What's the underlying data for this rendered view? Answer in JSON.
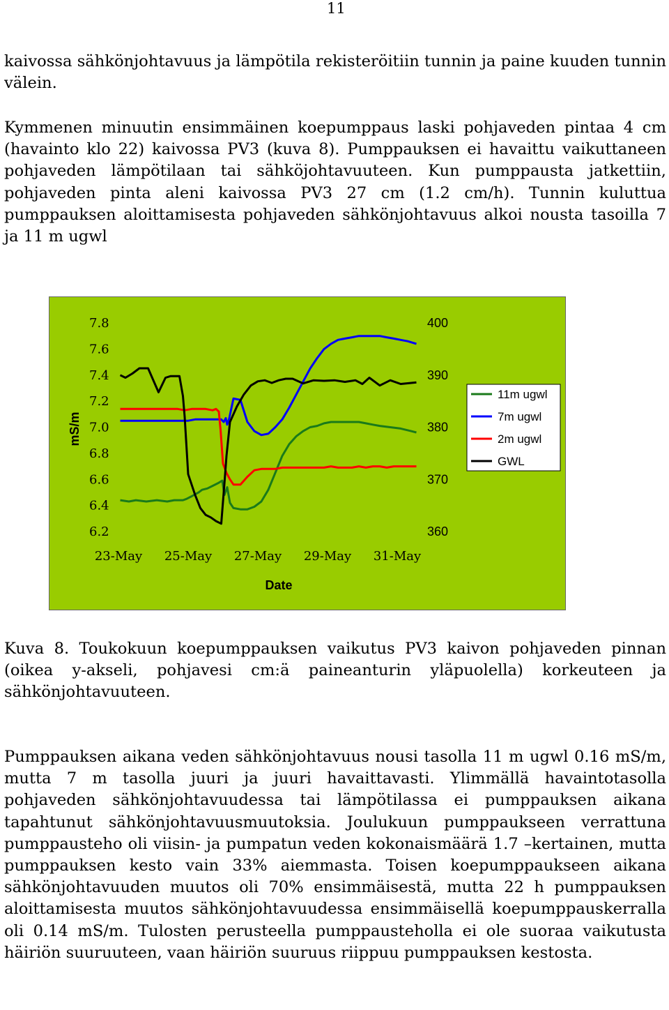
{
  "page_number": "11",
  "paragraphs": {
    "p1": "kaivossa sähkönjohtavuus ja lämpötila rekisteröitiin tunnin ja paine kuuden tunnin välein.",
    "p2": "Kymmenen minuutin ensimmäinen koepumppaus laski pohjaveden pintaa 4 cm (havainto klo 22) kaivossa PV3 (kuva 8). Pumppauksen ei havaittu vaikuttaneen pohjaveden lämpötilaan tai sähköjohtavuuteen. Kun pumppausta jatkettiin, pohjaveden pinta aleni kaivossa PV3 27 cm (1.2 cm/h). Tunnin kuluttua pumppauksen aloittamisesta pohjaveden sähkönjohtavuus alkoi nousta tasoilla 7 ja 11 m ugwl",
    "caption": "Kuva 8. Toukokuun koepumppauksen vaikutus PV3 kaivon pohjaveden pinnan (oikea y-akseli, pohjavesi cm:ä paineanturin yläpuolella) korkeuteen ja sähkönjohtavuuteen.",
    "p3": "Pumppauksen aikana veden sähkönjohtavuus nousi tasolla 11 m ugwl 0.16 mS/m, mutta 7 m tasolla juuri ja juuri havaittavasti. Ylimmällä havaintotasolla pohjaveden sähkönjohtavuudessa tai lämpötilassa ei pumppauksen aikana tapahtunut sähkönjohtavuusmuutoksia. Joulukuun pumppaukseen verrattuna pumppausteho oli viisin- ja pumpatun veden kokonaismäärä 1.7 –kertainen, mutta pumppauksen kesto vain 33% aiemmasta. Toisen koepumppaukseen aikana sähkönjohtavuuden muutos oli 70% ensimmäisestä, mutta 22 h pumppauksen aloittamisesta muutos sähkönjohtavuudessa ensimmäisellä koepumppauskerralla oli 0.14 mS/m. Tulosten perusteella pumppausteholla ei ole suoraa vaikutusta häiriön suuruuteen, vaan häiriön suuruus riippuu pumppauksen kestosta."
  },
  "colors": {
    "background": "#99cc00",
    "legend_bg": "#ffffff",
    "series_11m": "#1a7a1a",
    "series_7m": "#0000ff",
    "series_2m": "#ff0000",
    "series_gwl": "#000000"
  },
  "chart_data": {
    "type": "line",
    "xlabel": "Date",
    "ylabel": "mS/m",
    "x_ticks": [
      "23-May",
      "25-May",
      "27-May",
      "29-May",
      "31-May"
    ],
    "x_tick_values": [
      23,
      25,
      27,
      29,
      31
    ],
    "xlim": [
      23,
      31.6
    ],
    "y_ticks": [
      "7.8",
      "7.6",
      "7.4",
      "7.2",
      "7.0",
      "6.8",
      "6.6",
      "6.4",
      "6.2"
    ],
    "y_tick_values": [
      7.8,
      7.6,
      7.4,
      7.2,
      7.0,
      6.8,
      6.6,
      6.4,
      6.2
    ],
    "ylim": [
      6.2,
      7.8
    ],
    "y2_ticks": [
      "400",
      "390",
      "380",
      "370",
      "360"
    ],
    "y2_tick_values": [
      400,
      390,
      380,
      370,
      360
    ],
    "y2lim": [
      360,
      400
    ],
    "legend_position": "right",
    "series": [
      {
        "name": "11m ugwl",
        "axis": "left",
        "color": "#1a7a1a",
        "x": [
          23.05,
          23.3,
          23.5,
          23.8,
          24.1,
          24.4,
          24.6,
          24.85,
          24.95,
          25.1,
          25.3,
          25.4,
          25.55,
          25.7,
          25.85,
          25.98,
          26.04,
          26.12,
          26.2,
          26.3,
          26.5,
          26.7,
          26.9,
          27.1,
          27.3,
          27.5,
          27.7,
          27.9,
          28.1,
          28.3,
          28.5,
          28.7,
          28.9,
          29.1,
          29.3,
          29.5,
          29.7,
          29.9,
          30.1,
          30.3,
          30.5,
          30.8,
          31.1,
          31.4,
          31.55
        ],
        "y": [
          6.44,
          6.43,
          6.44,
          6.43,
          6.44,
          6.43,
          6.44,
          6.44,
          6.45,
          6.47,
          6.5,
          6.52,
          6.53,
          6.55,
          6.57,
          6.59,
          6.48,
          6.54,
          6.42,
          6.38,
          6.37,
          6.37,
          6.39,
          6.43,
          6.52,
          6.65,
          6.78,
          6.87,
          6.93,
          6.97,
          7.0,
          7.01,
          7.03,
          7.04,
          7.04,
          7.04,
          7.04,
          7.04,
          7.03,
          7.02,
          7.01,
          7.0,
          6.99,
          6.97,
          6.96
        ]
      },
      {
        "name": "7m ugwl",
        "axis": "left",
        "color": "#0000ff",
        "x": [
          23.05,
          23.3,
          23.5,
          23.8,
          24.0,
          24.3,
          24.6,
          24.85,
          25.0,
          25.2,
          25.4,
          25.55,
          25.7,
          25.85,
          25.95,
          26.02,
          26.08,
          26.12,
          26.18,
          26.3,
          26.5,
          26.7,
          26.9,
          27.1,
          27.3,
          27.5,
          27.7,
          27.9,
          28.1,
          28.3,
          28.5,
          28.7,
          28.9,
          29.1,
          29.3,
          29.5,
          29.7,
          29.9,
          30.1,
          30.3,
          30.5,
          30.7,
          30.9,
          31.1,
          31.3,
          31.55
        ],
        "y": [
          7.05,
          7.05,
          7.05,
          7.05,
          7.05,
          7.05,
          7.05,
          7.05,
          7.05,
          7.06,
          7.06,
          7.06,
          7.06,
          7.06,
          7.06,
          7.04,
          7.07,
          7.02,
          7.07,
          7.22,
          7.21,
          7.04,
          6.97,
          6.94,
          6.95,
          7.0,
          7.06,
          7.15,
          7.25,
          7.35,
          7.45,
          7.53,
          7.6,
          7.64,
          7.67,
          7.68,
          7.69,
          7.7,
          7.7,
          7.7,
          7.7,
          7.69,
          7.68,
          7.67,
          7.66,
          7.64
        ]
      },
      {
        "name": "2m ugwl",
        "axis": "left",
        "color": "#ff0000",
        "x": [
          23.05,
          23.3,
          23.5,
          23.8,
          24.1,
          24.4,
          24.7,
          24.9,
          25.1,
          25.3,
          25.5,
          25.7,
          25.8,
          25.88,
          25.93,
          26.0,
          26.1,
          26.2,
          26.3,
          26.5,
          26.7,
          26.9,
          27.1,
          27.3,
          27.5,
          27.7,
          27.9,
          28.1,
          28.3,
          28.5,
          28.7,
          28.9,
          29.1,
          29.3,
          29.5,
          29.7,
          29.9,
          30.1,
          30.3,
          30.5,
          30.7,
          30.9,
          31.1,
          31.3,
          31.55
        ],
        "y": [
          7.14,
          7.14,
          7.14,
          7.14,
          7.14,
          7.14,
          7.14,
          7.13,
          7.14,
          7.14,
          7.14,
          7.13,
          7.14,
          7.12,
          6.98,
          6.72,
          6.65,
          6.6,
          6.56,
          6.56,
          6.62,
          6.67,
          6.68,
          6.68,
          6.68,
          6.69,
          6.69,
          6.69,
          6.69,
          6.69,
          6.69,
          6.69,
          6.7,
          6.69,
          6.69,
          6.69,
          6.7,
          6.69,
          6.7,
          6.7,
          6.69,
          6.7,
          6.7,
          6.7,
          6.7
        ]
      },
      {
        "name": "GWL",
        "axis": "right",
        "color": "#000000",
        "x": [
          23.05,
          23.2,
          23.4,
          23.6,
          23.85,
          24.15,
          24.35,
          24.5,
          24.75,
          24.85,
          24.9,
          25.0,
          25.2,
          25.35,
          25.5,
          25.65,
          25.8,
          25.95,
          26.05,
          26.1,
          26.2,
          26.4,
          26.6,
          26.8,
          27.0,
          27.2,
          27.4,
          27.6,
          27.8,
          28.0,
          28.3,
          28.6,
          28.9,
          29.2,
          29.5,
          29.8,
          30.0,
          30.2,
          30.5,
          30.8,
          31.1,
          31.4,
          31.55
        ],
        "y": [
          390,
          389.5,
          390.3,
          391.3,
          391.3,
          386.7,
          389.5,
          389.8,
          389.8,
          386.0,
          382.0,
          371.0,
          367.0,
          364.5,
          363.2,
          362.7,
          362.0,
          361.5,
          370.0,
          374.5,
          381.0,
          384.0,
          386.3,
          388.0,
          388.8,
          389.0,
          388.5,
          389.0,
          389.3,
          389.3,
          388.4,
          389.0,
          388.9,
          389.0,
          388.7,
          389.0,
          388.3,
          389.5,
          388.0,
          389.0,
          388.3,
          388.5,
          388.6
        ]
      }
    ]
  }
}
